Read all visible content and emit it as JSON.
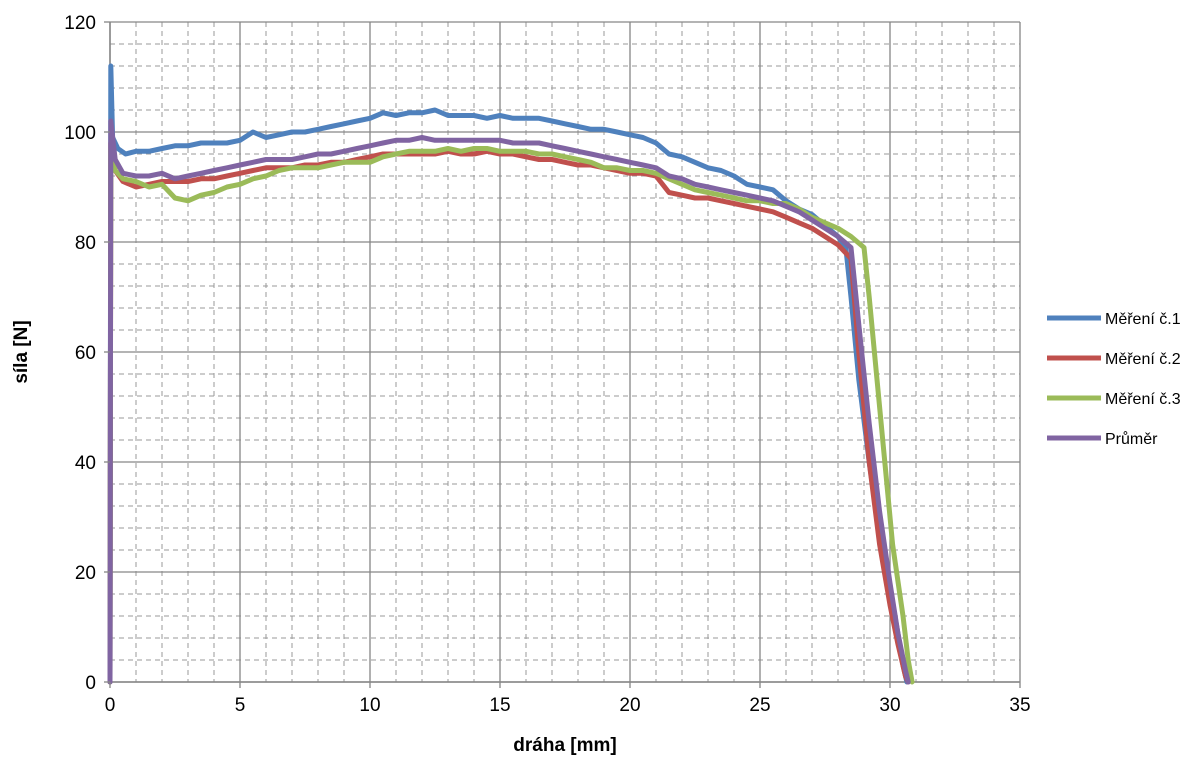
{
  "chart_data": {
    "type": "line",
    "title": "",
    "xlabel": "dráha [mm]",
    "ylabel": "síla [N]",
    "xlim": [
      0,
      35
    ],
    "ylim": [
      0,
      120
    ],
    "x_ticks": [
      0,
      5,
      10,
      15,
      20,
      25,
      30,
      35
    ],
    "y_ticks": [
      0,
      20,
      40,
      60,
      80,
      100,
      120
    ],
    "grid": {
      "major": true,
      "minor_dashed": true
    },
    "legend_position": "right",
    "series": [
      {
        "name": "Měření č.1",
        "color": "#4f81bd",
        "points": [
          [
            0,
            0
          ],
          [
            0.03,
            112
          ],
          [
            0.1,
            99
          ],
          [
            0.3,
            97
          ],
          [
            0.6,
            96
          ],
          [
            1,
            96.5
          ],
          [
            1.5,
            96.5
          ],
          [
            2,
            97
          ],
          [
            2.5,
            97.5
          ],
          [
            3,
            97.5
          ],
          [
            3.5,
            98
          ],
          [
            4,
            98
          ],
          [
            4.5,
            98
          ],
          [
            5,
            98.5
          ],
          [
            5.5,
            100
          ],
          [
            6,
            99
          ],
          [
            6.5,
            99.5
          ],
          [
            7,
            100
          ],
          [
            7.5,
            100
          ],
          [
            8,
            100.5
          ],
          [
            8.5,
            101
          ],
          [
            9,
            101.5
          ],
          [
            9.5,
            102
          ],
          [
            10,
            102.5
          ],
          [
            10.5,
            103.5
          ],
          [
            11,
            103
          ],
          [
            11.5,
            103.5
          ],
          [
            12,
            103.5
          ],
          [
            12.5,
            104
          ],
          [
            13,
            103
          ],
          [
            13.5,
            103
          ],
          [
            14,
            103
          ],
          [
            14.5,
            102.5
          ],
          [
            15,
            103
          ],
          [
            15.5,
            102.5
          ],
          [
            16,
            102.5
          ],
          [
            16.5,
            102.5
          ],
          [
            17,
            102
          ],
          [
            17.5,
            101.5
          ],
          [
            18,
            101
          ],
          [
            18.5,
            100.5
          ],
          [
            19,
            100.5
          ],
          [
            19.5,
            100
          ],
          [
            20,
            99.5
          ],
          [
            20.5,
            99
          ],
          [
            21,
            98
          ],
          [
            21.5,
            96
          ],
          [
            22,
            95.5
          ],
          [
            22.5,
            94.5
          ],
          [
            23,
            93.5
          ],
          [
            23.5,
            93
          ],
          [
            24,
            92
          ],
          [
            24.5,
            90.5
          ],
          [
            25,
            90
          ],
          [
            25.5,
            89.5
          ],
          [
            26,
            87.5
          ],
          [
            26.5,
            86
          ],
          [
            27,
            85
          ],
          [
            27.5,
            83
          ],
          [
            28,
            81
          ],
          [
            28.3,
            79
          ],
          [
            28.5,
            70
          ],
          [
            28.8,
            55
          ],
          [
            29.2,
            40
          ],
          [
            29.6,
            27
          ],
          [
            30,
            17
          ],
          [
            30.3,
            9
          ],
          [
            30.5,
            3
          ],
          [
            30.65,
            0
          ]
        ]
      },
      {
        "name": "Měření č.2",
        "color": "#c0504d",
        "points": [
          [
            0,
            0
          ],
          [
            0.03,
            98
          ],
          [
            0.2,
            93
          ],
          [
            0.5,
            91
          ],
          [
            1,
            90
          ],
          [
            1.5,
            90.5
          ],
          [
            2,
            91
          ],
          [
            2.5,
            91
          ],
          [
            3,
            91
          ],
          [
            3.5,
            91.5
          ],
          [
            4,
            91.5
          ],
          [
            4.5,
            92
          ],
          [
            5,
            92.5
          ],
          [
            5.5,
            93
          ],
          [
            6,
            93.5
          ],
          [
            6.5,
            93.5
          ],
          [
            7,
            93.5
          ],
          [
            7.5,
            94
          ],
          [
            8,
            94
          ],
          [
            8.5,
            94.5
          ],
          [
            9,
            94.5
          ],
          [
            9.5,
            95
          ],
          [
            10,
            95.5
          ],
          [
            10.5,
            96
          ],
          [
            11,
            96
          ],
          [
            11.5,
            96
          ],
          [
            12,
            96
          ],
          [
            12.5,
            96
          ],
          [
            13,
            96.5
          ],
          [
            13.5,
            96
          ],
          [
            14,
            96
          ],
          [
            14.5,
            96.5
          ],
          [
            15,
            96
          ],
          [
            15.5,
            96
          ],
          [
            16,
            95.5
          ],
          [
            16.5,
            95
          ],
          [
            17,
            95
          ],
          [
            17.5,
            94.5
          ],
          [
            18,
            94
          ],
          [
            18.5,
            94
          ],
          [
            19,
            93.5
          ],
          [
            19.5,
            93
          ],
          [
            20,
            92.5
          ],
          [
            20.5,
            92.5
          ],
          [
            21,
            92
          ],
          [
            21.5,
            89
          ],
          [
            22,
            88.5
          ],
          [
            22.5,
            88
          ],
          [
            23,
            88
          ],
          [
            23.5,
            87.5
          ],
          [
            24,
            87
          ],
          [
            24.5,
            86.5
          ],
          [
            25,
            86
          ],
          [
            25.5,
            85.5
          ],
          [
            26,
            84.5
          ],
          [
            26.5,
            83.5
          ],
          [
            27,
            82.5
          ],
          [
            27.5,
            81
          ],
          [
            28,
            79.5
          ],
          [
            28.5,
            77
          ],
          [
            28.8,
            60
          ],
          [
            29.2,
            40
          ],
          [
            29.6,
            25
          ],
          [
            30,
            14
          ],
          [
            30.3,
            7
          ],
          [
            30.6,
            1
          ],
          [
            30.7,
            0
          ]
        ]
      },
      {
        "name": "Měření č.3",
        "color": "#9bbb59",
        "points": [
          [
            0,
            0
          ],
          [
            0.03,
            97
          ],
          [
            0.2,
            93
          ],
          [
            0.5,
            91.5
          ],
          [
            1,
            91
          ],
          [
            1.5,
            90
          ],
          [
            2,
            90.5
          ],
          [
            2.5,
            88
          ],
          [
            3,
            87.5
          ],
          [
            3.5,
            88.5
          ],
          [
            4,
            89
          ],
          [
            4.5,
            90
          ],
          [
            5,
            90.5
          ],
          [
            5.5,
            91.5
          ],
          [
            6,
            92
          ],
          [
            6.5,
            93
          ],
          [
            7,
            93.5
          ],
          [
            7.5,
            93.5
          ],
          [
            8,
            93.5
          ],
          [
            8.5,
            94
          ],
          [
            9,
            94.5
          ],
          [
            9.5,
            94.5
          ],
          [
            10,
            94.5
          ],
          [
            10.5,
            95.5
          ],
          [
            11,
            96
          ],
          [
            11.5,
            96.5
          ],
          [
            12,
            96.5
          ],
          [
            12.5,
            96.5
          ],
          [
            13,
            97
          ],
          [
            13.5,
            96.5
          ],
          [
            14,
            97
          ],
          [
            14.5,
            97
          ],
          [
            15,
            96.5
          ],
          [
            15.5,
            96.5
          ],
          [
            16,
            96.5
          ],
          [
            16.5,
            96
          ],
          [
            17,
            96
          ],
          [
            17.5,
            95.5
          ],
          [
            18,
            95
          ],
          [
            18.5,
            94.5
          ],
          [
            19,
            93.5
          ],
          [
            19.5,
            93.5
          ],
          [
            20,
            93
          ],
          [
            20.5,
            93
          ],
          [
            21,
            92.5
          ],
          [
            21.5,
            91.5
          ],
          [
            22,
            90.5
          ],
          [
            22.5,
            89.5
          ],
          [
            23,
            89
          ],
          [
            23.5,
            88.5
          ],
          [
            24,
            88
          ],
          [
            24.5,
            87.5
          ],
          [
            25,
            87.5
          ],
          [
            25.5,
            87
          ],
          [
            26,
            87
          ],
          [
            26.5,
            86
          ],
          [
            27,
            84.5
          ],
          [
            27.5,
            83.5
          ],
          [
            28,
            82.5
          ],
          [
            28.5,
            81
          ],
          [
            29,
            79
          ],
          [
            29.2,
            70
          ],
          [
            29.5,
            55
          ],
          [
            29.8,
            40
          ],
          [
            30.1,
            25
          ],
          [
            30.5,
            12
          ],
          [
            30.7,
            4
          ],
          [
            30.85,
            0
          ]
        ]
      },
      {
        "name": "Průměr",
        "color": "#8064a2",
        "points": [
          [
            0,
            0
          ],
          [
            0.03,
            102
          ],
          [
            0.2,
            95
          ],
          [
            0.5,
            92.5
          ],
          [
            1,
            92
          ],
          [
            1.5,
            92
          ],
          [
            2,
            92.5
          ],
          [
            2.5,
            91.5
          ],
          [
            3,
            92
          ],
          [
            3.5,
            92.5
          ],
          [
            4,
            93
          ],
          [
            4.5,
            93.5
          ],
          [
            5,
            94
          ],
          [
            5.5,
            94.5
          ],
          [
            6,
            95
          ],
          [
            6.5,
            95
          ],
          [
            7,
            95
          ],
          [
            7.5,
            95.5
          ],
          [
            8,
            96
          ],
          [
            8.5,
            96
          ],
          [
            9,
            96.5
          ],
          [
            9.5,
            97
          ],
          [
            10,
            97.5
          ],
          [
            10.5,
            98
          ],
          [
            11,
            98.5
          ],
          [
            11.5,
            98.5
          ],
          [
            12,
            99
          ],
          [
            12.5,
            98.5
          ],
          [
            13,
            98.5
          ],
          [
            13.5,
            98.5
          ],
          [
            14,
            98.5
          ],
          [
            14.5,
            98.5
          ],
          [
            15,
            98.5
          ],
          [
            15.5,
            98
          ],
          [
            16,
            98
          ],
          [
            16.5,
            98
          ],
          [
            17,
            97.5
          ],
          [
            17.5,
            97
          ],
          [
            18,
            96.5
          ],
          [
            18.5,
            96
          ],
          [
            19,
            95.5
          ],
          [
            19.5,
            95
          ],
          [
            20,
            94.5
          ],
          [
            20.5,
            94
          ],
          [
            21,
            93.5
          ],
          [
            21.5,
            92
          ],
          [
            22,
            91.5
          ],
          [
            22.5,
            90.5
          ],
          [
            23,
            90
          ],
          [
            23.5,
            89.5
          ],
          [
            24,
            89
          ],
          [
            24.5,
            88.5
          ],
          [
            25,
            88
          ],
          [
            25.5,
            87.5
          ],
          [
            26,
            86.5
          ],
          [
            26.5,
            85.5
          ],
          [
            27,
            84
          ],
          [
            27.5,
            82.5
          ],
          [
            28,
            81
          ],
          [
            28.5,
            79
          ],
          [
            28.8,
            65
          ],
          [
            29.2,
            47
          ],
          [
            29.6,
            31
          ],
          [
            30,
            18
          ],
          [
            30.3,
            9
          ],
          [
            30.6,
            2
          ],
          [
            30.7,
            0
          ]
        ]
      }
    ]
  }
}
